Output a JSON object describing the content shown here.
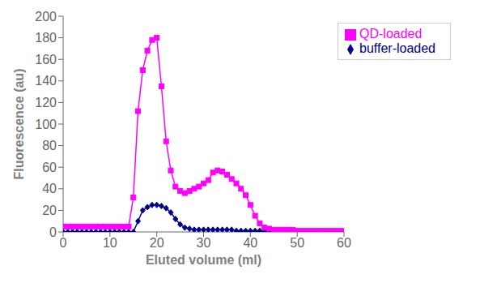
{
  "chart_data": {
    "type": "line",
    "x": [
      0,
      1,
      2,
      3,
      4,
      5,
      6,
      7,
      8,
      9,
      10,
      11,
      12,
      13,
      14,
      15,
      16,
      17,
      18,
      19,
      20,
      21,
      22,
      23,
      24,
      25,
      26,
      27,
      28,
      29,
      30,
      31,
      32,
      33,
      34,
      35,
      36,
      37,
      38,
      39,
      40,
      41,
      42,
      43,
      44,
      45,
      46,
      47,
      48,
      49,
      50,
      51,
      52,
      53,
      54,
      55,
      56,
      57,
      58,
      59,
      60
    ],
    "series": [
      {
        "name": "buffer-loaded",
        "color": "#00008B",
        "marker": "diamond",
        "values": [
          0,
          0,
          0,
          0,
          0,
          0,
          0,
          0,
          0,
          0,
          0,
          0,
          0,
          0,
          0,
          0,
          10,
          20,
          23,
          25,
          25,
          24,
          22,
          18,
          12,
          7,
          4,
          3,
          2,
          2,
          2,
          2,
          2,
          2,
          2,
          2,
          2,
          1,
          1,
          1,
          1,
          1,
          1,
          1,
          1,
          0,
          0,
          0,
          0,
          0,
          0,
          0,
          0,
          0,
          0,
          0,
          0,
          0,
          0,
          0,
          0
        ]
      },
      {
        "name": "QD-loaded",
        "color": "#FF00FF",
        "marker": "square",
        "values": [
          5,
          5,
          5,
          5,
          5,
          5,
          5,
          5,
          5,
          5,
          5,
          5,
          5,
          5,
          5,
          32,
          112,
          150,
          168,
          178,
          180,
          135,
          84,
          57,
          42,
          38,
          36,
          38,
          40,
          42,
          45,
          48,
          55,
          57,
          56,
          53,
          49,
          45,
          40,
          34,
          25,
          15,
          8,
          4,
          3,
          2,
          2,
          2,
          2,
          2,
          1,
          1,
          1,
          1,
          1,
          1,
          1,
          1,
          1,
          1,
          1
        ]
      }
    ],
    "xlabel": "Eluted volume (ml)",
    "ylabel": "Fluorescence (au)",
    "xlim": [
      0,
      60
    ],
    "ylim": [
      0,
      200
    ],
    "xticks": [
      0,
      10,
      20,
      30,
      40,
      50,
      60
    ],
    "yticks": [
      0,
      20,
      40,
      60,
      80,
      100,
      120,
      140,
      160,
      180,
      200
    ],
    "legend": "upper right",
    "grid": false
  }
}
